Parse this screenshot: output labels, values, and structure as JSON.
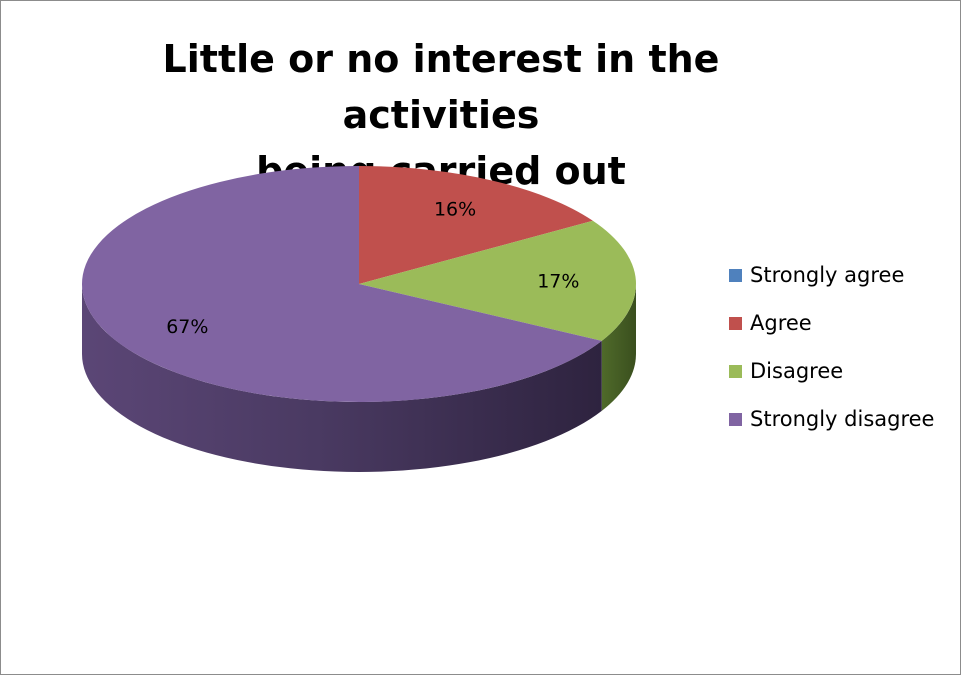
{
  "chart_data": {
    "type": "pie",
    "title_lines": [
      "Little or no interest in the activities",
      "being carried out"
    ],
    "categories": [
      "Strongly agree",
      "Agree",
      "Disagree",
      "Strongly disagree"
    ],
    "values": [
      0,
      16,
      17,
      67
    ],
    "data_labels": [
      "",
      "16%",
      "17%",
      "67%"
    ],
    "colors": {
      "Strongly agree": "#4f81bd",
      "Agree": "#c0504d",
      "Disagree": "#9bbb59",
      "Strongly disagree": "#8064a2"
    },
    "legend_position": "right",
    "style": "3d"
  }
}
